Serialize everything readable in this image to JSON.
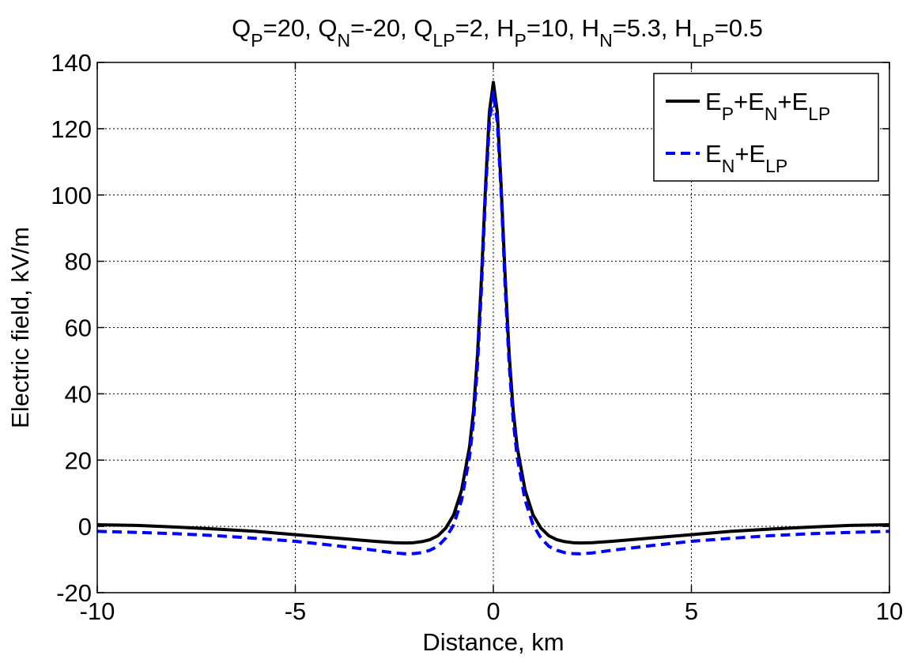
{
  "colors": {
    "total": "#000000",
    "partial": "#0000ff",
    "grid": "#000000",
    "background": "#ffffff"
  },
  "chart_data": {
    "type": "line",
    "title": {
      "segments": [
        {
          "t": "Q"
        },
        {
          "t": "P",
          "sub": true
        },
        {
          "t": "=20, Q"
        },
        {
          "t": "N",
          "sub": true
        },
        {
          "t": "=-20, Q"
        },
        {
          "t": "LP",
          "sub": true
        },
        {
          "t": "=2,    H"
        },
        {
          "t": "P",
          "sub": true
        },
        {
          "t": "=10, H"
        },
        {
          "t": "N",
          "sub": true
        },
        {
          "t": "=5.3, H"
        },
        {
          "t": "LP",
          "sub": true
        },
        {
          "t": "=0.5"
        }
      ]
    },
    "xlabel": "Distance, km",
    "ylabel": "Electric field, kV/m",
    "xlim": [
      -10,
      10
    ],
    "ylim": [
      -20,
      140
    ],
    "xticks": [
      -10,
      -5,
      0,
      5,
      10
    ],
    "yticks": [
      -20,
      0,
      20,
      40,
      60,
      80,
      100,
      120,
      140
    ],
    "grid": true,
    "legend_position": "top-right",
    "series": [
      {
        "name": "E_P+E_N+E_LP",
        "legend_segments": [
          {
            "t": "E"
          },
          {
            "t": "P",
            "sub": true
          },
          {
            "t": "+E"
          },
          {
            "t": "N",
            "sub": true
          },
          {
            "t": "+E"
          },
          {
            "t": "LP",
            "sub": true
          }
        ],
        "style": "solid",
        "x": [
          -10,
          -9,
          -8,
          -7,
          -6,
          -5,
          -4,
          -3,
          -2.5,
          -2.2,
          -2,
          -1.8,
          -1.6,
          -1.4,
          -1.2,
          -1.0,
          -0.8,
          -0.6,
          -0.5,
          -0.4,
          -0.3,
          -0.2,
          -0.1,
          0,
          0.1,
          0.2,
          0.3,
          0.4,
          0.5,
          0.6,
          0.8,
          1.0,
          1.2,
          1.4,
          1.6,
          1.8,
          2.0,
          2.2,
          2.5,
          3,
          4,
          5,
          6,
          7,
          8,
          9,
          10
        ],
        "y": [
          0.5,
          0.3,
          -0.2,
          -0.8,
          -1.5,
          -2.5,
          -3.5,
          -4.5,
          -4.9,
          -5.0,
          -4.9,
          -4.6,
          -4.0,
          -2.8,
          -0.5,
          3.5,
          11,
          24,
          35,
          52,
          75,
          102,
          125,
          134,
          125,
          102,
          75,
          52,
          35,
          24,
          11,
          3.5,
          -0.5,
          -2.8,
          -4.0,
          -4.6,
          -4.9,
          -5.0,
          -4.9,
          -4.5,
          -3.5,
          -2.5,
          -1.5,
          -0.8,
          -0.2,
          0.3,
          0.5
        ]
      },
      {
        "name": "E_N+E_LP",
        "legend_segments": [
          {
            "t": "E"
          },
          {
            "t": "N",
            "sub": true
          },
          {
            "t": "+E"
          },
          {
            "t": "LP",
            "sub": true
          }
        ],
        "style": "dashed",
        "x": [
          -10,
          -9,
          -8,
          -7,
          -6,
          -5,
          -4,
          -3,
          -2.5,
          -2.2,
          -2,
          -1.8,
          -1.6,
          -1.4,
          -1.2,
          -1.0,
          -0.8,
          -0.6,
          -0.5,
          -0.4,
          -0.3,
          -0.2,
          -0.1,
          0,
          0.1,
          0.2,
          0.3,
          0.4,
          0.5,
          0.6,
          0.8,
          1.0,
          1.2,
          1.4,
          1.6,
          1.8,
          2.0,
          2.2,
          2.5,
          3,
          4,
          5,
          6,
          7,
          8,
          9,
          10
        ],
        "y": [
          -1.5,
          -1.8,
          -2.2,
          -2.8,
          -3.6,
          -4.5,
          -5.8,
          -7.2,
          -8.0,
          -8.3,
          -8.2,
          -7.9,
          -7.2,
          -6.0,
          -3.5,
          0.5,
          8,
          21,
          32,
          49,
          72,
          100,
          122,
          131,
          122,
          100,
          72,
          49,
          32,
          21,
          8,
          0.5,
          -3.5,
          -6.0,
          -7.2,
          -7.9,
          -8.2,
          -8.3,
          -8.0,
          -7.2,
          -5.8,
          -4.5,
          -3.6,
          -2.8,
          -2.2,
          -1.8,
          -1.5
        ]
      }
    ]
  }
}
